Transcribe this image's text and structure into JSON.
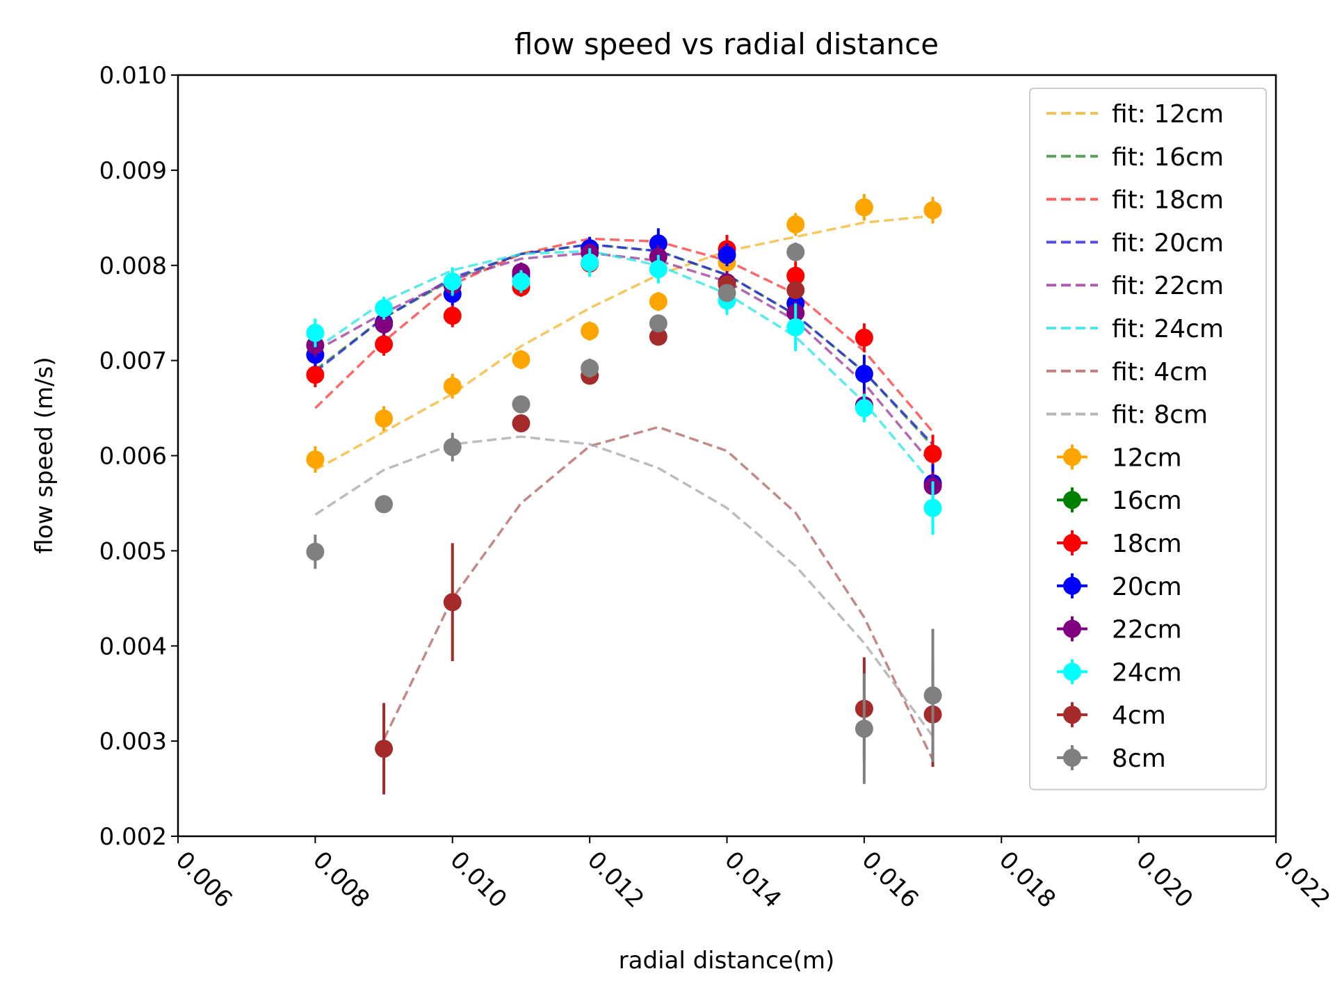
{
  "chart_data": {
    "type": "scatter",
    "title": "flow speed vs radial distance",
    "xlabel": "radial distance(m)",
    "ylabel": "flow speed (m/s)",
    "xlim": [
      0.006,
      0.022
    ],
    "ylim": [
      0.002,
      0.01
    ],
    "xticks": [
      "0.006",
      "0.008",
      "0.010",
      "0.012",
      "0.014",
      "0.016",
      "0.018",
      "0.020",
      "0.022"
    ],
    "yticks": [
      "0.002",
      "0.003",
      "0.004",
      "0.005",
      "0.006",
      "0.007",
      "0.008",
      "0.009",
      "0.010"
    ],
    "grid": false,
    "legend_position": "top-right",
    "x": [
      0.008,
      0.009,
      0.01,
      0.011,
      0.012,
      0.013,
      0.014,
      0.015,
      0.016,
      0.017
    ],
    "fits": [
      {
        "name": "fit: 12cm",
        "color": "#f5b324",
        "values": [
          0.00585,
          0.00625,
          0.00665,
          0.00715,
          0.00755,
          0.0079,
          0.00815,
          0.0083,
          0.00845,
          0.00852
        ]
      },
      {
        "name": "fit: 16cm",
        "color": "#2e8b2e",
        "values": [
          0.0069,
          0.00745,
          0.00785,
          0.00812,
          0.00822,
          0.00815,
          0.0079,
          0.00748,
          0.00688,
          0.0061
        ]
      },
      {
        "name": "fit: 18cm",
        "color": "#ff3333",
        "values": [
          0.0065,
          0.0072,
          0.0078,
          0.00812,
          0.00828,
          0.00825,
          0.00805,
          0.0077,
          0.0071,
          0.00625
        ]
      },
      {
        "name": "fit: 20cm",
        "color": "#2222dd",
        "values": [
          0.00688,
          0.00745,
          0.00787,
          0.00812,
          0.00822,
          0.00815,
          0.0079,
          0.00748,
          0.00688,
          0.00612
        ]
      },
      {
        "name": "fit: 22cm",
        "color": "#993399",
        "values": [
          0.0071,
          0.0075,
          0.00785,
          0.00807,
          0.00813,
          0.00805,
          0.00783,
          0.00742,
          0.00676,
          0.0059
        ]
      },
      {
        "name": "fit: 24cm",
        "color": "#22e5e5",
        "values": [
          0.00712,
          0.00762,
          0.00795,
          0.00812,
          0.00815,
          0.008,
          0.0077,
          0.00725,
          0.00656,
          0.0057
        ]
      },
      {
        "name": "fit: 4cm",
        "color": "#b06060",
        "values": [
          null,
          0.00302,
          0.0045,
          0.0055,
          0.0061,
          0.0063,
          0.00605,
          0.0054,
          0.0043,
          0.0028
        ]
      },
      {
        "name": "fit: 8cm",
        "color": "#a6a6a6",
        "values": [
          0.00538,
          0.00585,
          0.00612,
          0.0062,
          0.00612,
          0.00587,
          0.00545,
          0.00484,
          0.00403,
          0.00305
        ]
      }
    ],
    "series": [
      {
        "name": "12cm",
        "color": "#ffa500",
        "values": [
          0.00596,
          0.00639,
          0.00673,
          0.00701,
          0.00731,
          0.00762,
          0.00803,
          0.00843,
          0.00861,
          0.00858
        ],
        "errors": [
          0.00014,
          0.00013,
          0.00013,
          0.0001,
          0.0001,
          0.0001,
          0.0001,
          0.00012,
          0.00014,
          0.00014
        ]
      },
      {
        "name": "16cm",
        "color": "#008000",
        "values": [],
        "errors": []
      },
      {
        "name": "18cm",
        "color": "#ff0000",
        "values": [
          0.00685,
          0.00717,
          0.00747,
          0.00777,
          0.00802,
          0.00823,
          0.00817,
          0.00789,
          0.00724,
          0.00602
        ],
        "errors": [
          0.00013,
          0.00012,
          0.00012,
          0.0001,
          0.0001,
          0.0001,
          0.00015,
          0.00015,
          0.00015,
          0.0002
        ]
      },
      {
        "name": "20cm",
        "color": "#0000ff",
        "values": [
          0.00706,
          0.0074,
          0.0077,
          0.0079,
          0.00818,
          0.00823,
          0.00811,
          0.0076,
          0.00686,
          0.00571
        ],
        "errors": [
          0.00012,
          0.00012,
          0.00012,
          0.00012,
          0.00012,
          0.00016,
          0.00012,
          0.0002,
          0.0002,
          0.0002
        ]
      },
      {
        "name": "22cm",
        "color": "#800080",
        "values": [
          0.00716,
          0.00738,
          0.00779,
          0.00793,
          0.00813,
          0.00809,
          0.00782,
          0.0075,
          0.00653,
          0.00568
        ],
        "errors": [
          0.00012,
          0.00012,
          0.0001,
          0.0001,
          0.0001,
          0.00012,
          0.00012,
          0.00012,
          0.00015,
          0.00015
        ]
      },
      {
        "name": "24cm",
        "color": "#00ffff",
        "values": [
          0.00729,
          0.00755,
          0.00783,
          0.00783,
          0.00803,
          0.00796,
          0.00763,
          0.00735,
          0.0065,
          0.00545
        ],
        "errors": [
          0.00015,
          0.00012,
          0.00015,
          0.00012,
          0.00015,
          0.00015,
          0.00015,
          0.00025,
          0.00015,
          0.00028
        ]
      },
      {
        "name": "4cm",
        "color": "#a52a2a",
        "values": [
          null,
          0.00292,
          0.00446,
          0.00634,
          0.00684,
          0.00725,
          0.0078,
          0.00774,
          0.00334,
          0.00328
        ],
        "errors": [
          null,
          0.00048,
          0.00062,
          8e-05,
          8e-05,
          8e-05,
          8e-05,
          8e-05,
          0.00054,
          0.00055
        ]
      },
      {
        "name": "8cm",
        "color": "#808080",
        "values": [
          0.00499,
          0.00549,
          0.00609,
          0.00654,
          0.00692,
          0.00739,
          0.00771,
          0.00814,
          0.00313,
          0.00348
        ],
        "errors": [
          0.00018,
          8e-05,
          0.00015,
          8e-05,
          0.0001,
          8e-05,
          8e-05,
          0.0001,
          0.00058,
          0.0007
        ]
      }
    ]
  }
}
